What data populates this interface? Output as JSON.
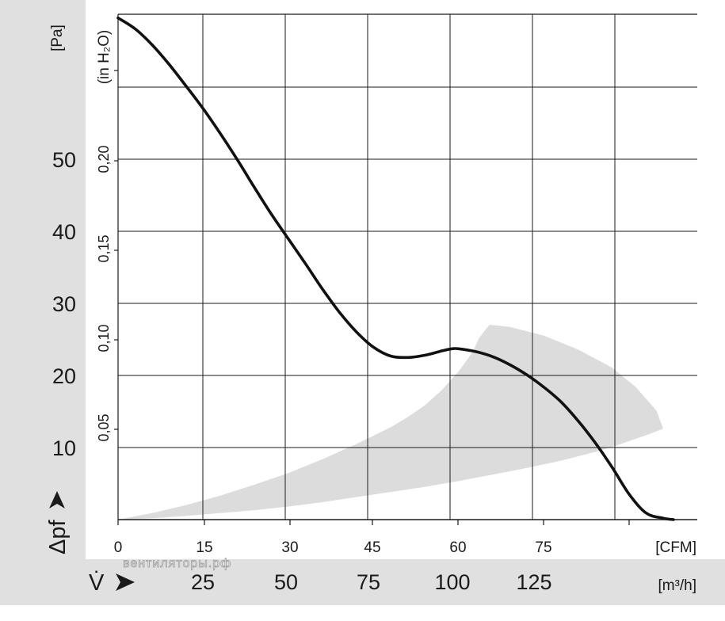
{
  "chart_data": {
    "type": "line",
    "title": "",
    "x_axis_top": {
      "unit": "[CFM]",
      "ticks": [
        "0",
        "15",
        "30",
        "45",
        "60",
        "75"
      ]
    },
    "x_axis_bottom": {
      "symbol": "V̇",
      "unit": "[m³/h]",
      "ticks": [
        "25",
        "50",
        "75",
        "100",
        "125"
      ]
    },
    "y_axis_left": {
      "symbol": "Δpf",
      "unit": "[Pa]",
      "ticks": [
        "10",
        "20",
        "30",
        "40",
        "50"
      ]
    },
    "y_axis_inner": {
      "unit": "(in H₂O)",
      "ticks": [
        "0,05",
        "0,10",
        "0,15",
        "0,20"
      ]
    },
    "xlim_m3h": [
      0,
      170
    ],
    "ylim_pa": [
      0,
      69.5
    ],
    "grid": true,
    "series": [
      {
        "kind": "characteristic-curve",
        "x_m3h": [
          0,
          5,
          10,
          15,
          20,
          25,
          30,
          35,
          40,
          45,
          50,
          55,
          60,
          65,
          70,
          75,
          80,
          85,
          90,
          95,
          98,
          100,
          105,
          110,
          115,
          120,
          125,
          130,
          135,
          140,
          145,
          150,
          155,
          160,
          163
        ],
        "y_pa": [
          69,
          67.5,
          65.3,
          62.6,
          59.6,
          56.5,
          53.1,
          49.5,
          45.7,
          42,
          38.6,
          35.2,
          31.7,
          28.5,
          25.8,
          23.7,
          22.5,
          22.3,
          22.6,
          23.2,
          23.5,
          23.5,
          23.1,
          22.4,
          21.3,
          19.9,
          18.2,
          16.2,
          13.6,
          10.6,
          7.2,
          3.5,
          0.9,
          0.2,
          0
        ]
      }
    ],
    "shaded_region": {
      "upper_x_m3h": [
        0,
        10,
        20,
        30,
        40,
        50,
        60,
        70,
        80,
        85,
        90,
        95,
        100,
        104,
        106,
        109
      ],
      "upper_y_pa": [
        0,
        0.9,
        2,
        3.3,
        4.8,
        6.4,
        8.3,
        10.4,
        12.7,
        14.1,
        15.7,
        17.8,
        20.4,
        23,
        25,
        26.8
      ],
      "lower_x_m3h": [
        160,
        155,
        150,
        145,
        140,
        130,
        120,
        110,
        100,
        90,
        80,
        70,
        60,
        50,
        40,
        30,
        20,
        10,
        0
      ],
      "lower_y_pa": [
        12.5,
        11.6,
        10.8,
        10,
        9.3,
        8.1,
        7.1,
        6.2,
        5.3,
        4.5,
        3.8,
        3.1,
        2.4,
        1.8,
        1.3,
        0.9,
        0.5,
        0.2,
        0
      ],
      "outer_x_m3h": [
        109,
        115,
        125,
        135,
        145,
        152,
        158,
        160
      ],
      "outer_y_pa": [
        26.8,
        26.5,
        25.3,
        23.4,
        20.9,
        18.2,
        15,
        12.5
      ]
    }
  },
  "watermark": "вентиляторы.рф"
}
